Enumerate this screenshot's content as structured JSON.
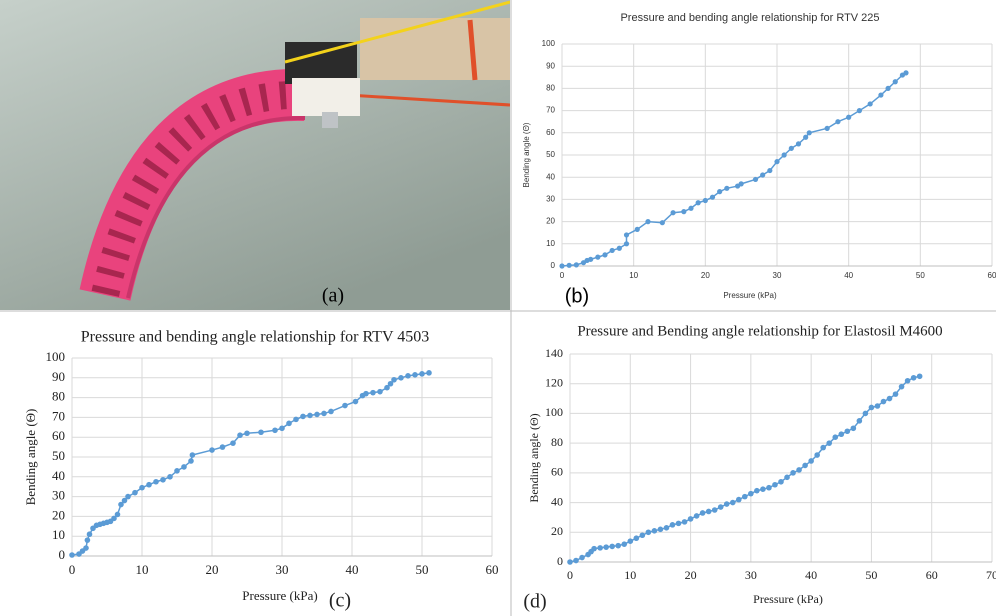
{
  "photo": {
    "label": "(a)"
  },
  "chart_data": [
    {
      "type": "line",
      "panel_label": "(b)",
      "title": "Pressure and bending angle relationship for RTV 225",
      "x_label": "Pressure (kPa)",
      "y_label": "Bending angle (Θ)",
      "color": "#5b9bd5",
      "grid": true,
      "xlim": [
        0,
        60
      ],
      "xticks": [
        0,
        10,
        20,
        30,
        40,
        50,
        60
      ],
      "ylim": [
        0,
        100
      ],
      "yticks": [
        0,
        10,
        20,
        30,
        40,
        50,
        60,
        70,
        80,
        90,
        100
      ],
      "x": [
        0,
        1,
        2,
        3,
        3.5,
        4,
        5,
        6,
        7,
        8,
        9,
        9,
        10.5,
        12,
        14,
        15.5,
        17,
        18,
        19,
        20,
        21,
        22,
        23,
        24.5,
        25,
        27,
        28,
        29,
        30,
        31,
        32,
        33,
        34,
        34.5,
        37,
        38.5,
        40,
        41.5,
        43,
        44.5,
        45.5,
        46.5,
        47.5,
        48
      ],
      "values": [
        0,
        0.3,
        0.5,
        1.5,
        2.5,
        3,
        4,
        5,
        7,
        8,
        10,
        14,
        16.5,
        20,
        19.5,
        24,
        24.5,
        26,
        28.5,
        29.5,
        31,
        33.5,
        35,
        36,
        37,
        39,
        41,
        43,
        47,
        50,
        53,
        55,
        58,
        60,
        62,
        65,
        67,
        70,
        73,
        77,
        80,
        83,
        86,
        87
      ]
    },
    {
      "type": "line",
      "panel_label": "(c)",
      "title": "Pressure and bending angle relationship for RTV 4503",
      "x_label": "Pressure (kPa)",
      "y_label": "Bending angle (Θ)",
      "color": "#5b9bd5",
      "grid": true,
      "xlim": [
        0,
        60
      ],
      "xticks": [
        0,
        10,
        20,
        30,
        40,
        50,
        60
      ],
      "ylim": [
        0,
        100
      ],
      "yticks": [
        0,
        10,
        20,
        30,
        40,
        50,
        60,
        70,
        80,
        90,
        100
      ],
      "x": [
        0,
        1,
        1.5,
        2,
        2.2,
        2.5,
        3,
        3.5,
        4,
        4.5,
        5,
        5.5,
        6,
        6.5,
        7,
        7.5,
        8,
        9,
        10,
        11,
        12,
        13,
        14,
        15,
        16,
        17,
        17.2,
        20,
        21.5,
        23,
        24,
        25,
        27,
        29,
        30,
        31,
        32,
        33,
        34,
        35,
        36,
        37,
        39,
        40.5,
        41.5,
        42,
        43,
        44,
        45,
        45.5,
        46,
        47,
        48,
        49,
        50,
        51
      ],
      "values": [
        0.5,
        1,
        2.5,
        4,
        8,
        11,
        14,
        15.5,
        16,
        16.5,
        17,
        17.5,
        19,
        21,
        26,
        28,
        30,
        32,
        34.5,
        36,
        37.5,
        38.5,
        40,
        43,
        45,
        48,
        51,
        53.5,
        55,
        57,
        61,
        62,
        62.5,
        63.5,
        64.5,
        67,
        69,
        70.5,
        71,
        71.5,
        72,
        73,
        76,
        78,
        81,
        82,
        82.5,
        83,
        85,
        87,
        89,
        90,
        91,
        91.5,
        92,
        92.5
      ]
    },
    {
      "type": "line",
      "panel_label": "(d)",
      "title": "Pressure and Bending angle relationship for Elastosil M4600",
      "x_label": "Pressure (kPa)",
      "y_label": "Bending angle (Θ)",
      "color": "#5b9bd5",
      "grid": true,
      "xlim": [
        0,
        70
      ],
      "xticks": [
        0,
        10,
        20,
        30,
        40,
        50,
        60,
        70
      ],
      "ylim": [
        0,
        140
      ],
      "yticks": [
        0,
        20,
        40,
        60,
        80,
        100,
        120,
        140
      ],
      "x": [
        0,
        1,
        2,
        3,
        3.5,
        4,
        5,
        6,
        7,
        8,
        9,
        10,
        11,
        12,
        13,
        14,
        15,
        16,
        17,
        18,
        19,
        20,
        21,
        22,
        23,
        24,
        25,
        26,
        27,
        28,
        29,
        30,
        31,
        32,
        33,
        34,
        35,
        36,
        37,
        38,
        39,
        40,
        41,
        42,
        43,
        44,
        45,
        46,
        47,
        48,
        49,
        50,
        51,
        52,
        53,
        54,
        55,
        56,
        57,
        58
      ],
      "values": [
        0,
        1,
        3,
        5,
        7,
        9,
        9.5,
        10,
        10.5,
        11,
        12,
        14,
        16,
        18,
        20,
        21,
        22,
        23,
        25,
        26,
        27,
        29,
        31,
        33,
        34,
        35,
        37,
        39,
        40,
        42,
        44,
        46,
        48,
        49,
        50,
        52,
        54,
        57,
        60,
        62,
        65,
        68,
        72,
        77,
        80,
        84,
        86,
        88,
        90,
        95,
        100,
        104,
        105,
        108,
        110,
        113,
        118,
        122,
        124,
        125
      ]
    }
  ]
}
